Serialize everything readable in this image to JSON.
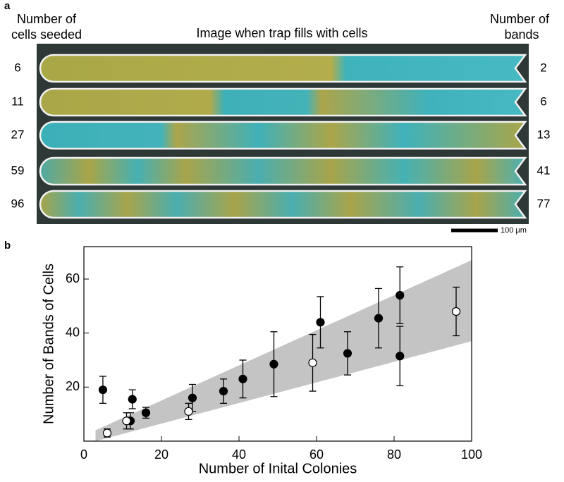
{
  "panel_a": {
    "label": "a",
    "left_heading": [
      "Number of",
      "cells seeded"
    ],
    "title": "Image when trap fills with cells",
    "right_heading": [
      "Number of",
      "bands"
    ],
    "rows": [
      {
        "seeded": 6,
        "bands": 2
      },
      {
        "seeded": 11,
        "bands": 6
      },
      {
        "seeded": 27,
        "bands": 13
      },
      {
        "seeded": 59,
        "bands": 41
      },
      {
        "seeded": 96,
        "bands": 77
      }
    ],
    "scale_label": "100 μm"
  },
  "chart_data": {
    "type": "scatter",
    "panel_label": "b",
    "x_label": "Number of Inital Colonies",
    "y_label": "Number of Bands of Cells",
    "xlim": [
      0,
      100
    ],
    "ylim": [
      0,
      72
    ],
    "xticks": [
      0,
      20,
      40,
      60,
      80,
      100
    ],
    "yticks": [
      20,
      40,
      60
    ],
    "band": {
      "color": "#c4c4c4",
      "x": [
        3,
        100
      ],
      "lower": [
        0,
        37
      ],
      "upper": [
        4,
        67
      ]
    },
    "series": [
      {
        "color": "#000000",
        "marker": "filled",
        "x": [
          4.9,
          12.5,
          12,
          16,
          28,
          36,
          41,
          49,
          61,
          68,
          76,
          81.5,
          81.5
        ],
        "values": [
          19,
          15.5,
          7.5,
          10.5,
          16,
          18.5,
          23,
          28.5,
          44,
          32.5,
          45.5,
          54,
          31.5
        ],
        "errors": [
          5,
          3.5,
          3,
          2,
          5,
          4.5,
          7,
          12,
          9.5,
          8,
          11,
          10.5,
          11
        ]
      },
      {
        "color": "#000000",
        "marker": "open",
        "x": [
          6,
          11,
          27,
          59,
          96
        ],
        "values": [
          3,
          7.5,
          11,
          29,
          48
        ],
        "errors": [
          1.5,
          3,
          3,
          10.5,
          9
        ]
      }
    ]
  }
}
